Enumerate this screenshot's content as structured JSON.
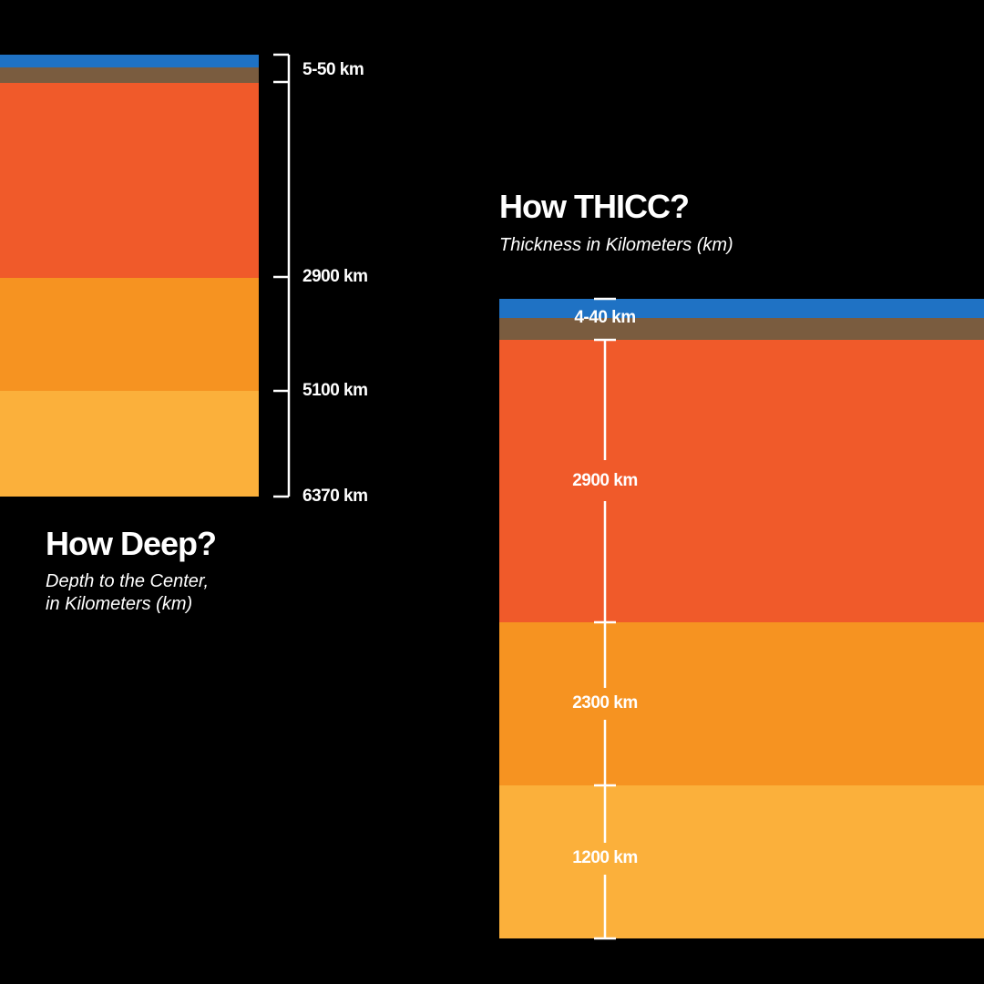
{
  "colors": {
    "crust_ocean": "#1f72c4",
    "crust_land": "#7a5c3f",
    "mantle": "#f05a2a",
    "outer_core": "#f69321",
    "inner_core": "#fbb03b",
    "background": "#000000",
    "text": "#ffffff"
  },
  "depth": {
    "title": "How Deep?",
    "subtitle_line1": "Depth to the Center,",
    "subtitle_line2": "in Kilometers (km)",
    "labels": {
      "crust": "5-50 km",
      "mantle": "2900 km",
      "outer_core": "5100 km",
      "center": "6370 km"
    }
  },
  "thickness": {
    "title": "How THICC?",
    "subtitle": "Thickness in Kilometers (km)",
    "labels": {
      "crust": "4-40 km",
      "mantle": "2900 km",
      "outer_core": "2300 km",
      "inner_core": "1200 km"
    }
  }
}
